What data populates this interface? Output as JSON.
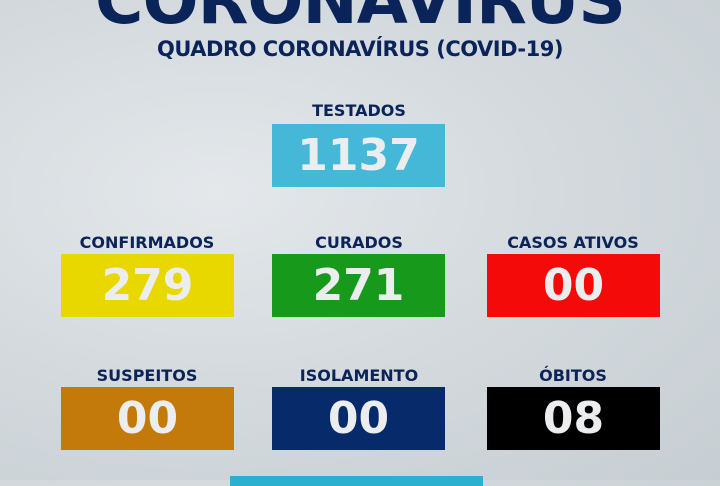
{
  "header": {
    "title": "CORONAVIRUS",
    "subtitle": "QUADRO CORONAVÍRUS (COVID-19)"
  },
  "stats": [
    {
      "label": "TESTADOS",
      "value": "1137",
      "color": "#45b8d8"
    },
    {
      "label": "CONFIRMADOS",
      "value": "279",
      "color": "#e8d800"
    },
    {
      "label": "CURADOS",
      "value": "271",
      "color": "#179a1c"
    },
    {
      "label": "CASOS ATIVOS",
      "value": "00",
      "color": "#f50a0a"
    },
    {
      "label": "SUSPEITOS",
      "value": "00",
      "color": "#c47a0a"
    },
    {
      "label": "ISOLAMENTO",
      "value": "00",
      "color": "#062a6a"
    },
    {
      "label": "ÓBITOS",
      "value": "08",
      "color": "#000000"
    }
  ]
}
